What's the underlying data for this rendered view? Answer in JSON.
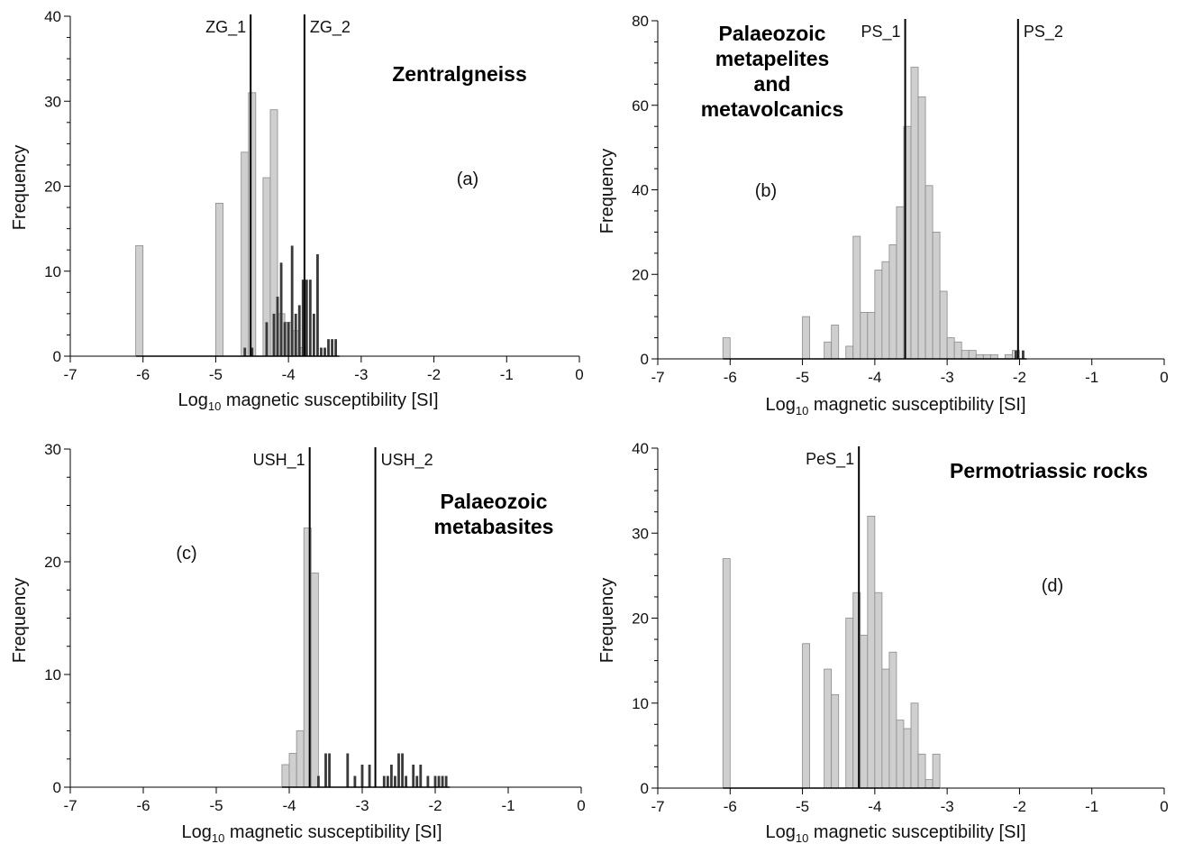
{
  "chart_data": [
    {
      "type": "bar",
      "letter": "(a)",
      "title_lines": [
        "Zentralgneiss"
      ],
      "xlabel_main": "Log",
      "xlabel_sub": "10",
      "xlabel_rest": " magnetic susceptibility [SI]",
      "ylabel": "Frequency",
      "xlim": [
        -7,
        0
      ],
      "ylim": [
        0,
        40
      ],
      "xticks": [
        -7,
        -6,
        -5,
        -4,
        -3,
        -2,
        -1,
        0
      ],
      "xtick_labels": [
        "-7",
        "-6",
        "-5",
        "-4",
        "-3",
        "-2",
        "-1",
        "0"
      ],
      "yticks": [
        0,
        10,
        20,
        30,
        40
      ],
      "ytick_labels": [
        "0",
        "10",
        "20",
        "30",
        "40"
      ],
      "bar_width": 0.1,
      "series": [
        {
          "style": "light",
          "x": [
            -6.05,
            -4.95,
            -4.6,
            -4.5,
            -4.3,
            -4.2,
            -4.1,
            -4.0,
            -3.9,
            -3.8
          ],
          "values": [
            13,
            18,
            24,
            31,
            21,
            29,
            5,
            4,
            3,
            1
          ]
        },
        {
          "style": "dark",
          "x": [
            -4.6,
            -4.5,
            -4.3,
            -4.2,
            -4.15,
            -4.1,
            -4.05,
            -4.0,
            -3.95,
            -3.9,
            -3.85,
            -3.8,
            -3.75,
            -3.7,
            -3.65,
            -3.6,
            -3.55,
            -3.5,
            -3.45,
            -3.4,
            -3.35
          ],
          "values": [
            1,
            1,
            4,
            5,
            7,
            11,
            4,
            4,
            13,
            5,
            6,
            9,
            9,
            9,
            5,
            12,
            1,
            1,
            2,
            2,
            2
          ]
        }
      ],
      "thresholds": [
        {
          "label": "ZG_1",
          "x": -4.52
        },
        {
          "label": "ZG_2",
          "x": -3.78
        }
      ]
    },
    {
      "type": "bar",
      "letter": "(b)",
      "title_lines": [
        "Palaeozoic",
        "metapelites",
        "and",
        "metavolcanics"
      ],
      "xlabel_main": "Log",
      "xlabel_sub": "10",
      "xlabel_rest": " magnetic susceptibility [SI]",
      "ylabel": "Frequency",
      "xlim": [
        -7,
        0
      ],
      "ylim": [
        0,
        80
      ],
      "xticks": [
        -7,
        -6,
        -5,
        -4,
        -3,
        -2,
        -1,
        0
      ],
      "xtick_labels": [
        "-7",
        "-6",
        "-5",
        "-4",
        "-3",
        "-2",
        "-1",
        "0"
      ],
      "yticks": [
        0,
        20,
        40,
        60,
        80
      ],
      "ytick_labels": [
        "0",
        "20",
        "40",
        "60",
        "80"
      ],
      "bar_width": 0.1,
      "series": [
        {
          "style": "light",
          "x": [
            -6.05,
            -4.95,
            -4.65,
            -4.55,
            -4.35,
            -4.25,
            -4.15,
            -4.05,
            -3.95,
            -3.85,
            -3.75,
            -3.65,
            -3.55,
            -3.45,
            -3.35,
            -3.25,
            -3.15,
            -3.05,
            -2.95,
            -2.85,
            -2.75,
            -2.65,
            -2.55,
            -2.45,
            -2.35,
            -2.15,
            -2.05
          ],
          "values": [
            5,
            10,
            4,
            8,
            3,
            29,
            11,
            11,
            21,
            23,
            27,
            36,
            55,
            69,
            62,
            41,
            30,
            16,
            5,
            4,
            2,
            2,
            1,
            1,
            1,
            1,
            2
          ]
        },
        {
          "style": "dark",
          "x": [
            -2.05,
            -1.95
          ],
          "values": [
            2,
            2
          ]
        }
      ],
      "thresholds": [
        {
          "label": "PS_1",
          "x": -3.58
        },
        {
          "label": "PS_2",
          "x": -2.02
        }
      ]
    },
    {
      "type": "bar",
      "letter": "(c)",
      "title_lines": [
        "Palaeozoic",
        "metabasites"
      ],
      "xlabel_main": "Log",
      "xlabel_sub": "10",
      "xlabel_rest": " magnetic susceptibility [SI]",
      "ylabel": "Frequency",
      "xlim": [
        -7,
        0
      ],
      "ylim": [
        0,
        30
      ],
      "xticks": [
        -7,
        -6,
        -5,
        -4,
        -3,
        -2,
        -1,
        0
      ],
      "xtick_labels": [
        "-7",
        "-6",
        "-5",
        "-4",
        "-3",
        "-2",
        "-1",
        "0"
      ],
      "yticks": [
        0,
        10,
        20,
        30
      ],
      "ytick_labels": [
        "0",
        "10",
        "20",
        "30"
      ],
      "bar_width": 0.1,
      "series": [
        {
          "style": "light",
          "x": [
            -4.05,
            -3.95,
            -3.85,
            -3.75,
            -3.65
          ],
          "values": [
            2,
            3,
            5,
            23,
            19
          ]
        },
        {
          "style": "dark",
          "x": [
            -3.6,
            -3.5,
            -3.45,
            -3.2,
            -3.1,
            -3.0,
            -2.9,
            -2.7,
            -2.65,
            -2.6,
            -2.55,
            -2.5,
            -2.45,
            -2.4,
            -2.3,
            -2.25,
            -2.2,
            -2.1,
            -2.0,
            -1.95,
            -1.9,
            -1.85
          ],
          "values": [
            1,
            3,
            3,
            3,
            1,
            2,
            2,
            1,
            1,
            2,
            1,
            3,
            3,
            1,
            2,
            1,
            2,
            1,
            1,
            1,
            1,
            1
          ]
        }
      ],
      "thresholds": [
        {
          "label": "USH_1",
          "x": -3.72
        },
        {
          "label": "USH_2",
          "x": -2.82
        }
      ]
    },
    {
      "type": "bar",
      "letter": "(d)",
      "title_lines": [
        "Permotriassic rocks"
      ],
      "xlabel_main": "Log",
      "xlabel_sub": "10",
      "xlabel_rest": " magnetic susceptibility [SI]",
      "ylabel": "Frequency",
      "xlim": [
        -7,
        0
      ],
      "ylim": [
        0,
        40
      ],
      "xticks": [
        -7,
        -6,
        -5,
        -4,
        -3,
        -2,
        -1,
        0
      ],
      "xtick_labels": [
        "-7",
        "-6",
        "-5",
        "-4",
        "-3",
        "-2",
        "-1",
        "0"
      ],
      "yticks": [
        0,
        10,
        20,
        30,
        40
      ],
      "ytick_labels": [
        "0",
        "10",
        "20",
        "30",
        "40"
      ],
      "bar_width": 0.1,
      "series": [
        {
          "style": "light",
          "x": [
            -6.05,
            -4.95,
            -4.65,
            -4.55,
            -4.35,
            -4.25,
            -4.15,
            -4.05,
            -3.95,
            -3.85,
            -3.75,
            -3.65,
            -3.55,
            -3.45,
            -3.35,
            -3.25,
            -3.15
          ],
          "values": [
            27,
            17,
            14,
            11,
            20,
            23,
            18,
            32,
            23,
            14,
            16,
            8,
            7,
            10,
            4,
            1,
            4
          ]
        }
      ],
      "thresholds": [
        {
          "label": "PeS_1",
          "x": -4.22
        }
      ]
    }
  ]
}
